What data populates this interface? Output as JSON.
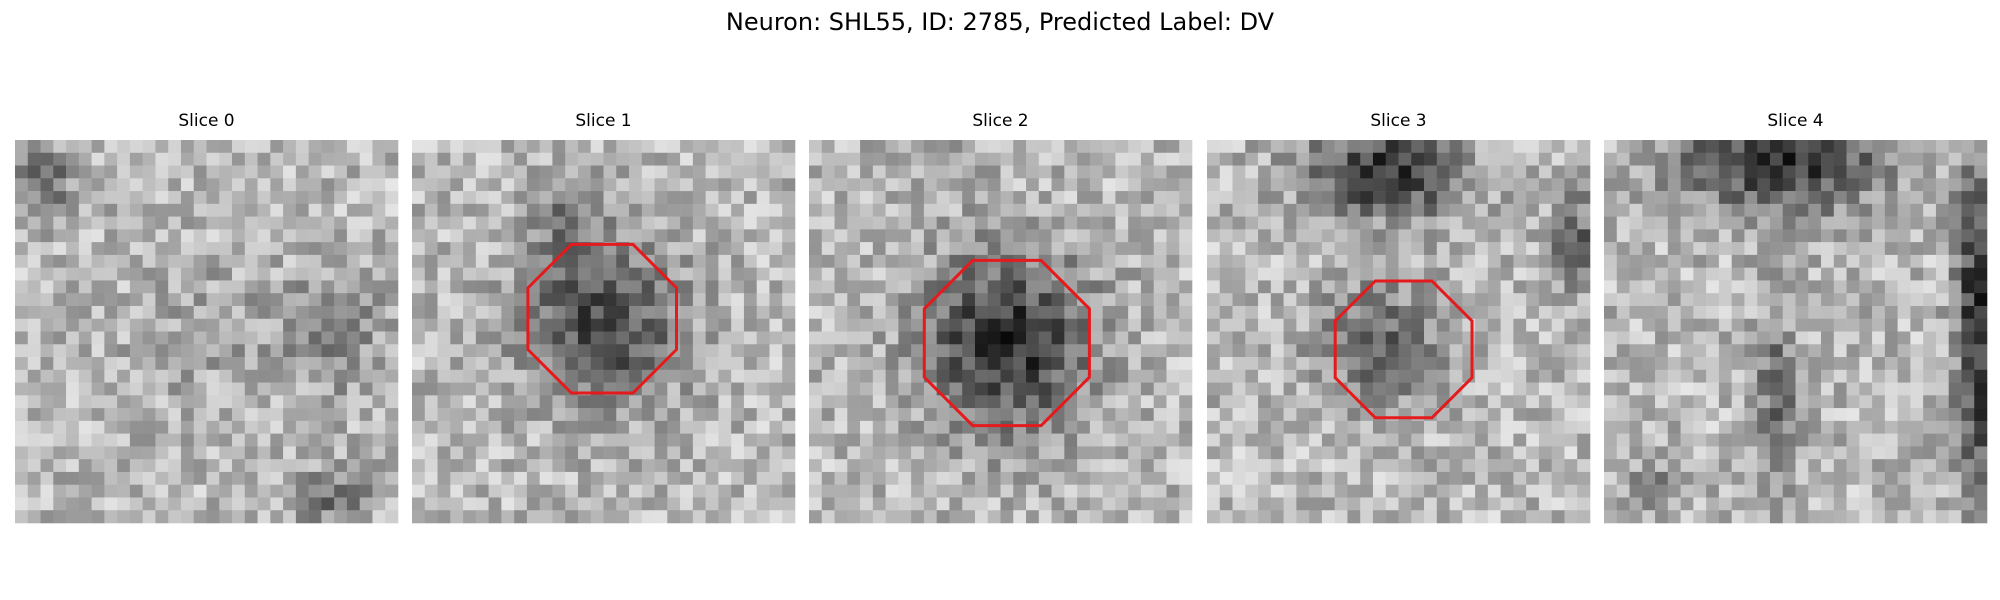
{
  "title": "Neuron: SHL55, ID: 2785, Predicted Label: DV",
  "panels": [
    {
      "title": "Slice 0"
    },
    {
      "title": "Slice 1"
    },
    {
      "title": "Slice 2"
    },
    {
      "title": "Slice 3"
    },
    {
      "title": "Slice 4"
    }
  ]
}
